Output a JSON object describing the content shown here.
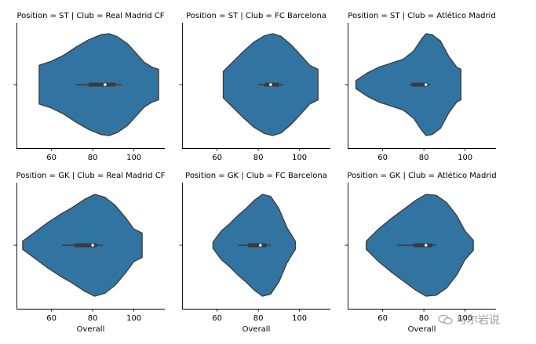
{
  "chart_data": {
    "type": "violin",
    "x_label": "Overall",
    "xlim": [
      43,
      115
    ],
    "xticks": [
      60,
      80,
      100
    ],
    "color": "#3274a1",
    "edge_color": "#3b3b3b",
    "panels": [
      {
        "title": "Position = ST | Club = Real Madrid CF",
        "min": 54,
        "max": 112,
        "q1": 78,
        "median": 86,
        "q3": 91,
        "whisker_low": 72,
        "whisker_high": 94,
        "profile": [
          [
            54,
            0.38
          ],
          [
            60,
            0.46
          ],
          [
            66,
            0.58
          ],
          [
            72,
            0.74
          ],
          [
            78,
            0.88
          ],
          [
            84,
            0.98
          ],
          [
            88,
            1.0
          ],
          [
            92,
            0.94
          ],
          [
            97,
            0.8
          ],
          [
            101,
            0.62
          ],
          [
            105,
            0.44
          ],
          [
            109,
            0.34
          ],
          [
            112,
            0.3
          ]
        ],
        "show_xlabel": false
      },
      {
        "title": "Position = ST | Club = FC Barcelona",
        "min": 63,
        "max": 109,
        "q1": 83,
        "median": 86,
        "q3": 90,
        "whisker_low": 80,
        "whisker_high": 92,
        "profile": [
          [
            63,
            0.26
          ],
          [
            68,
            0.46
          ],
          [
            73,
            0.66
          ],
          [
            78,
            0.84
          ],
          [
            83,
            0.96
          ],
          [
            87,
            1.0
          ],
          [
            91,
            0.95
          ],
          [
            96,
            0.78
          ],
          [
            101,
            0.56
          ],
          [
            105,
            0.38
          ],
          [
            109,
            0.3
          ]
        ],
        "show_xlabel": false
      },
      {
        "title": "Position = ST | Club = Atlético Madrid",
        "min": 47,
        "max": 98,
        "q1": 74,
        "median": 81,
        "q3": 82,
        "whisker_low": 73,
        "whisker_high": 83,
        "profile": [
          [
            47,
            0.08
          ],
          [
            53,
            0.24
          ],
          [
            58,
            0.34
          ],
          [
            64,
            0.42
          ],
          [
            70,
            0.5
          ],
          [
            75,
            0.66
          ],
          [
            79,
            0.9
          ],
          [
            81,
            1.0
          ],
          [
            84,
            0.98
          ],
          [
            88,
            0.86
          ],
          [
            92,
            0.56
          ],
          [
            96,
            0.34
          ],
          [
            98,
            0.3
          ]
        ],
        "show_xlabel": false
      },
      {
        "title": "Position = GK | Club = Real Madrid CF",
        "min": 46,
        "max": 104,
        "q1": 71,
        "median": 80,
        "q3": 82,
        "whisker_low": 65,
        "whisker_high": 85,
        "profile": [
          [
            46,
            0.08
          ],
          [
            52,
            0.26
          ],
          [
            58,
            0.44
          ],
          [
            64,
            0.6
          ],
          [
            70,
            0.74
          ],
          [
            76,
            0.9
          ],
          [
            81,
            1.0
          ],
          [
            86,
            0.94
          ],
          [
            91,
            0.78
          ],
          [
            96,
            0.54
          ],
          [
            100,
            0.32
          ],
          [
            104,
            0.24
          ]
        ],
        "show_xlabel": true
      },
      {
        "title": "Position = GK | Club = FC Barcelona",
        "min": 58,
        "max": 98,
        "q1": 75,
        "median": 81,
        "q3": 84,
        "whisker_low": 70,
        "whisker_high": 86,
        "profile": [
          [
            58,
            0.06
          ],
          [
            62,
            0.28
          ],
          [
            66,
            0.42
          ],
          [
            70,
            0.58
          ],
          [
            74,
            0.72
          ],
          [
            78,
            0.88
          ],
          [
            82,
            1.0
          ],
          [
            86,
            0.96
          ],
          [
            90,
            0.72
          ],
          [
            94,
            0.34
          ],
          [
            98,
            0.08
          ]
        ],
        "show_xlabel": true
      },
      {
        "title": "Position = GK | Club = Atlético Madrid",
        "min": 52,
        "max": 104,
        "q1": 75,
        "median": 81,
        "q3": 84,
        "whisker_low": 67,
        "whisker_high": 86,
        "profile": [
          [
            52,
            0.08
          ],
          [
            58,
            0.32
          ],
          [
            64,
            0.52
          ],
          [
            70,
            0.7
          ],
          [
            76,
            0.88
          ],
          [
            81,
            1.0
          ],
          [
            86,
            0.98
          ],
          [
            91,
            0.84
          ],
          [
            96,
            0.58
          ],
          [
            100,
            0.28
          ],
          [
            104,
            0.1
          ]
        ],
        "show_xlabel": true
      }
    ]
  },
  "watermark": {
    "text": "与尔岩说",
    "icon": "wechat-icon"
  }
}
